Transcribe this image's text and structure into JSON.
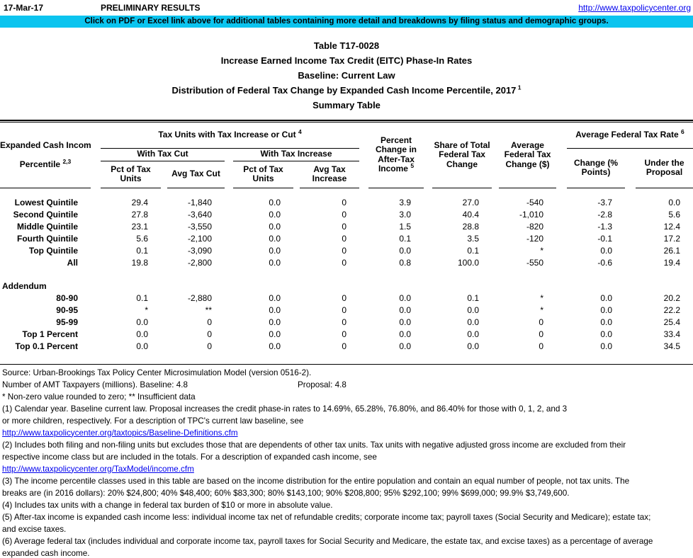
{
  "topbar": {
    "date": "17-Mar-17",
    "preliminary": "PRELIMINARY RESULTS",
    "link": "http://www.taxpolicycenter.org"
  },
  "banner": {
    "text": "Click on PDF or Excel link above for additional tables containing more detail and breakdowns by filing status and demographic groups.",
    "bg_color": "#0CC4EF"
  },
  "title": {
    "lines": [
      {
        "text": "Table T17-0028",
        "sup": ""
      },
      {
        "text": "Increase Earned Income Tax Credit (EITC) Phase-In Rates",
        "sup": ""
      },
      {
        "text": "Baseline: Current Law",
        "sup": ""
      },
      {
        "text": "Distribution of Federal Tax Change by Expanded Cash Income Percentile, 2017",
        "sup": "1"
      },
      {
        "text": "Summary Table",
        "sup": ""
      }
    ]
  },
  "table": {
    "header": {
      "stub_line1": "Expanded Cash Income",
      "stub_line2": "Percentile",
      "stub_sup": "2,3",
      "tax_units_group": "Tax Units with Tax Increase or Cut",
      "tax_units_group_sup": "4",
      "with_tax_cut": "With Tax Cut",
      "with_tax_increase": "With Tax Increase",
      "pct_units": "Pct of Tax\nUnits",
      "avg_cut": "Avg Tax Cut",
      "avg_increase": "Avg Tax\nIncrease",
      "pct_change": "Percent\nChange in\nAfter-Tax\nIncome",
      "pct_change_sup": "5",
      "share_total": "Share of Total\nFederal Tax\nChange",
      "avg_change": "Average\nFederal Tax\nChange ($)",
      "rate_group": "Average Federal Tax Rate",
      "rate_group_sup": "6",
      "change_points": "Change (%\nPoints)",
      "under_proposal": "Under the\nProposal"
    },
    "main_rows": [
      {
        "label": "Lowest Quintile",
        "values": [
          "29.4",
          "-1,840",
          "0.0",
          "0",
          "3.9",
          "27.0",
          "-540",
          "-3.7",
          "0.0"
        ]
      },
      {
        "label": "Second Quintile",
        "values": [
          "27.8",
          "-3,640",
          "0.0",
          "0",
          "3.0",
          "40.4",
          "-1,010",
          "-2.8",
          "5.6"
        ]
      },
      {
        "label": "Middle Quintile",
        "values": [
          "23.1",
          "-3,550",
          "0.0",
          "0",
          "1.5",
          "28.8",
          "-820",
          "-1.3",
          "12.4"
        ]
      },
      {
        "label": "Fourth Quintile",
        "values": [
          "5.6",
          "-2,100",
          "0.0",
          "0",
          "0.1",
          "3.5",
          "-120",
          "-0.1",
          "17.2"
        ]
      },
      {
        "label": "Top Quintile",
        "values": [
          "0.1",
          "-3,090",
          "0.0",
          "0",
          "0.0",
          "0.1",
          "*",
          "0.0",
          "26.1"
        ]
      },
      {
        "label": "All",
        "values": [
          "19.8",
          "-2,800",
          "0.0",
          "0",
          "0.8",
          "100.0",
          "-550",
          "-0.6",
          "19.4"
        ]
      }
    ],
    "addendum_label": "Addendum",
    "addendum_rows": [
      {
        "label": "80-90",
        "values": [
          "0.1",
          "-2,880",
          "0.0",
          "0",
          "0.0",
          "0.1",
          "*",
          "0.0",
          "20.2"
        ]
      },
      {
        "label": "90-95",
        "values": [
          "*",
          "**",
          "0.0",
          "0",
          "0.0",
          "0.0",
          "*",
          "0.0",
          "22.2"
        ]
      },
      {
        "label": "95-99",
        "values": [
          "0.0",
          "0",
          "0.0",
          "0",
          "0.0",
          "0.0",
          "0",
          "0.0",
          "25.4"
        ]
      },
      {
        "label": "Top 1 Percent",
        "values": [
          "0.0",
          "0",
          "0.0",
          "0",
          "0.0",
          "0.0",
          "0",
          "0.0",
          "33.4"
        ]
      },
      {
        "label": "Top 0.1 Percent",
        "values": [
          "0.0",
          "0",
          "0.0",
          "0",
          "0.0",
          "0.0",
          "0",
          "0.0",
          "34.5"
        ]
      }
    ]
  },
  "notes": {
    "lines": [
      {
        "type": "text",
        "text": "Source: Urban-Brookings Tax Policy Center Microsimulation Model (version 0516-2)."
      },
      {
        "type": "pair",
        "left": "Number of AMT Taxpayers (millions).  Baseline: 4.8",
        "right": "Proposal: 4.8"
      },
      {
        "type": "text",
        "text": "* Non-zero value rounded to zero; ** Insufficient data"
      },
      {
        "type": "text",
        "text": "(1) Calendar year. Baseline current law. Proposal increases the credit phase-in rates to 14.69%, 65.28%, 76.80%, and 86.40% for those with 0, 1, 2, and 3"
      },
      {
        "type": "text",
        "text": "or more children, respectively. For a description of TPC's current law baseline, see"
      },
      {
        "type": "link",
        "text": "http://www.taxpolicycenter.org/taxtopics/Baseline-Definitions.cfm"
      },
      {
        "type": "text",
        "text": "(2) Includes both filing and non-filing units but excludes those that are dependents of other tax units. Tax units with negative adjusted gross income are excluded from their"
      },
      {
        "type": "text",
        "text": "respective income class but are included in the totals. For a description of expanded cash income, see"
      },
      {
        "type": "link",
        "text": "http://www.taxpolicycenter.org/TaxModel/income.cfm"
      },
      {
        "type": "text",
        "text": "(3) The income percentile classes used in this table are based on the income distribution for the entire population and contain an equal number of people, not tax units. The"
      },
      {
        "type": "text",
        "text": "breaks are (in 2016 dollars): 20% $24,800; 40% $48,400; 60% $83,300; 80% $143,100; 90% $208,800; 95% $292,100; 99% $699,000; 99.9% $3,749,600."
      },
      {
        "type": "text",
        "text": "(4) Includes tax units with a change in federal tax burden of $10 or more in absolute value."
      },
      {
        "type": "text",
        "text": "(5) After-tax income is expanded cash income less: individual income tax net of refundable credits; corporate income tax; payroll taxes (Social Security and Medicare); estate tax;"
      },
      {
        "type": "text",
        "text": "and excise taxes."
      },
      {
        "type": "text",
        "text": "(6) Average federal tax (includes individual and corporate income tax, payroll taxes for Social Security and Medicare, the estate tax, and excise taxes) as a percentage of average"
      },
      {
        "type": "text",
        "text": "expanded cash income."
      }
    ]
  },
  "colors": {
    "banner_bg": "#0CC4EF",
    "link": "#0000EE",
    "text": "#000000",
    "background": "#FFFFFF"
  }
}
